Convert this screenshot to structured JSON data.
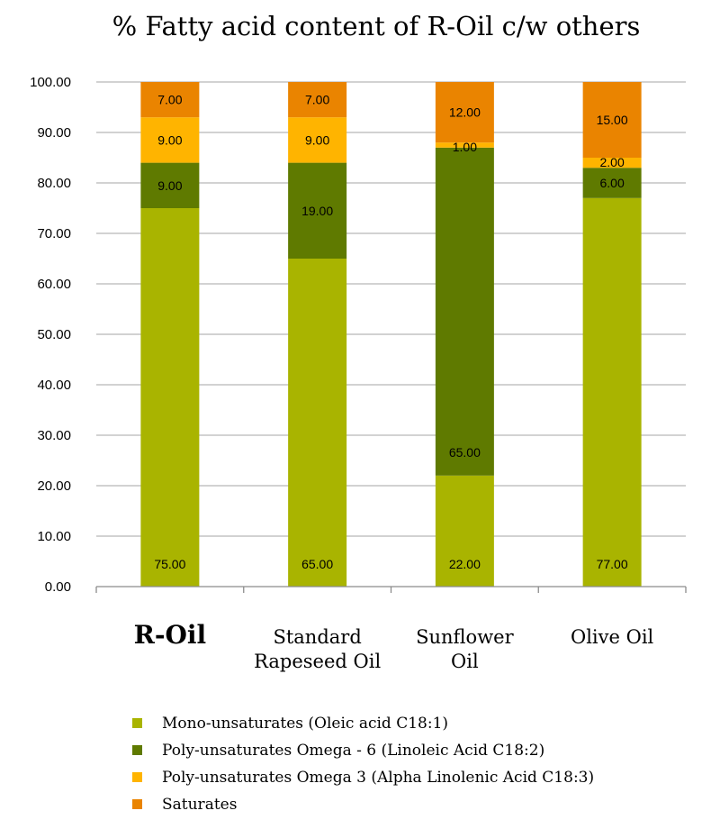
{
  "chart_data": {
    "type": "bar",
    "stacked": true,
    "title": "% Fatty acid content of R-Oil c/w others",
    "categories": [
      "R-Oil",
      "Standard Rapeseed Oil",
      "Sunflower Oil",
      "Olive Oil"
    ],
    "category_lines": [
      [
        "R-Oil"
      ],
      [
        "Standard",
        "Rapeseed Oil"
      ],
      [
        "Sunflower",
        "Oil"
      ],
      [
        "Olive Oil"
      ]
    ],
    "series": [
      {
        "name": "Mono-unsaturates (Oleic acid C18:1)",
        "color": "#a9b400",
        "values": [
          75,
          65,
          22,
          77
        ],
        "labels": [
          "75.00",
          "65.00",
          "22.00",
          "77.00"
        ]
      },
      {
        "name": "Poly-unsaturates Omega - 6 (Linoleic Acid C18:2)",
        "color": "#5f7a00",
        "values": [
          9,
          19,
          65,
          6
        ],
        "labels": [
          "9.00",
          "19.00",
          "65.00",
          "6.00"
        ]
      },
      {
        "name": "Poly-unsaturates Omega 3 (Alpha Linolenic Acid C18:3)",
        "color": "#ffb400",
        "values": [
          9,
          9,
          1,
          2
        ],
        "labels": [
          "9.00",
          "9.00",
          "1.00",
          "2.00"
        ]
      },
      {
        "name": "Saturates",
        "color": "#ea8400",
        "values": [
          7,
          7,
          12,
          15
        ],
        "labels": [
          "7.00",
          "7.00",
          "12.00",
          "15.00"
        ]
      }
    ],
    "ylim": [
      0,
      100
    ],
    "yticks": [
      "0.00",
      "10.00",
      "20.00",
      "30.00",
      "40.00",
      "50.00",
      "60.00",
      "70.00",
      "80.00",
      "90.00",
      "100.00"
    ],
    "grid": true,
    "legend": "bottom"
  }
}
